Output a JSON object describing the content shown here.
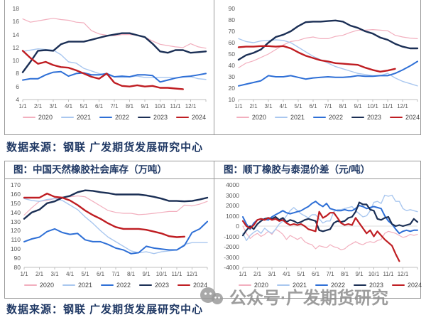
{
  "sources": {
    "top": "数据来源：钢联 广发期货发展研究中心",
    "bottom": "数据来源：钢联 广发期货发展研究中心"
  },
  "watermark": {
    "icon": "wechat-icon",
    "text": "公众号·广发期货研究"
  },
  "months": [
    "1/1",
    "2/1",
    "3/1",
    "4/1",
    "5/1",
    "6/1",
    "7/1",
    "8/1",
    "9/1",
    "10/1",
    "11/1",
    "12/1"
  ],
  "palette": {
    "y2020": "#F2AFBE",
    "y2021": "#A9C7EF",
    "y2022": "#2E6FD6",
    "y2023": "#1B2F55",
    "y2024": "#BF1D22",
    "axis": "#BFBFBF",
    "zero_line": "#DDDDDD",
    "heading": "#1F3864",
    "border": "#9A9A9A"
  },
  "chart_data": [
    {
      "id": "top-left-seasonal",
      "type": "line",
      "title": "",
      "ylim": [
        4,
        18
      ],
      "ystep": 2,
      "xmin": 1,
      "xmax": 13,
      "series": [
        {
          "name": "2020",
          "color": "#F2AFBE",
          "width": 1.2,
          "x_end": 13,
          "values": [
            16.4,
            15.9,
            16.1,
            16.3,
            16.5,
            16.3,
            16.2,
            15.9,
            15.8,
            14.6,
            14.1,
            13.9,
            13.8,
            14.0,
            14.0,
            13.9,
            13.6,
            13.0,
            12.5,
            12.3,
            12.1,
            12.0,
            12.6,
            12.1,
            11.9
          ]
        },
        {
          "name": "2021",
          "color": "#A9C7EF",
          "width": 1.4,
          "x_end": 13,
          "values": [
            11.4,
            11.6,
            11.8,
            11.7,
            11.6,
            10.9,
            9.8,
            9.6,
            8.8,
            8.4,
            8.0,
            7.8,
            7.5,
            7.4,
            7.5,
            7.6,
            7.4,
            7.4,
            7.4,
            7.4,
            7.3,
            7.5,
            7.5,
            7.2,
            7.1
          ]
        },
        {
          "name": "2022",
          "color": "#2E6FD6",
          "width": 2,
          "x_end": 13,
          "values": [
            7.0,
            7.2,
            7.2,
            7.8,
            8.2,
            8.3,
            7.6,
            8.0,
            8.1,
            7.8,
            7.8,
            8.0,
            7.5,
            7.6,
            7.5,
            7.8,
            7.8,
            7.7,
            6.7,
            7.0,
            7.3,
            7.5,
            7.6,
            7.8,
            8.0
          ]
        },
        {
          "name": "2023",
          "color": "#1B2F55",
          "width": 2.4,
          "x_end": 13,
          "values": [
            8.2,
            9.8,
            11.5,
            11.6,
            11.5,
            12.5,
            12.9,
            12.9,
            12.9,
            13.2,
            13.5,
            13.8,
            14.0,
            14.2,
            14.2,
            13.9,
            13.6,
            12.6,
            11.4,
            11.2,
            11.6,
            11.6,
            11.2,
            11.3,
            11.4
          ]
        },
        {
          "name": "2024",
          "color": "#BF1D22",
          "width": 2.4,
          "x_end": 11.5,
          "values": [
            11.5,
            10.4,
            9.5,
            9.8,
            9.3,
            9.0,
            8.9,
            8.5,
            8.0,
            7.5,
            7.2,
            8.0,
            6.6,
            6.1,
            6.0,
            6.2,
            6.0,
            6.1,
            5.8,
            5.8,
            5.7,
            5.6
          ]
        }
      ]
    },
    {
      "id": "top-right-seasonal",
      "type": "line",
      "title": "",
      "ylim": [
        10,
        90
      ],
      "ystep": 10,
      "xmin": 1,
      "xmax": 13,
      "series": [
        {
          "name": "2020",
          "color": "#F2AFBE",
          "width": 1.2,
          "x_end": 13,
          "values": [
            38,
            42,
            44,
            47,
            50,
            54,
            58,
            61,
            62,
            64,
            65,
            63.5,
            63.5,
            65.5,
            66.5,
            69,
            71,
            71,
            71.5,
            71,
            70.5,
            66.5,
            65,
            64,
            63.5
          ]
        },
        {
          "name": "2021",
          "color": "#A9C7EF",
          "width": 1.4,
          "x_end": 13,
          "values": [
            63.5,
            61,
            60,
            61.5,
            62,
            62.5,
            62,
            60,
            56,
            52,
            48,
            45,
            42,
            39,
            37,
            35,
            33,
            32,
            31,
            31,
            33,
            29,
            26,
            24,
            22
          ]
        },
        {
          "name": "2022",
          "color": "#2E6FD6",
          "width": 2,
          "x_end": 13,
          "values": [
            22,
            23.5,
            25,
            26.5,
            31,
            30,
            30,
            31,
            29.5,
            28,
            29,
            29.5,
            30,
            29.5,
            29.5,
            30,
            31,
            30.5,
            30.5,
            31,
            31,
            33,
            36,
            39.5,
            43.5
          ]
        },
        {
          "name": "2023",
          "color": "#1B2F55",
          "width": 2.4,
          "x_end": 13,
          "values": [
            45,
            49,
            51,
            54,
            60,
            65,
            67,
            70,
            74.5,
            78,
            78.5,
            78.5,
            79,
            79.5,
            78.5,
            75,
            73,
            70,
            68,
            64.5,
            62.5,
            59,
            56.5,
            55,
            55
          ]
        },
        {
          "name": "2024",
          "color": "#BF1D22",
          "width": 2.4,
          "x_end": 11.5,
          "values": [
            56,
            56.5,
            56.5,
            57,
            57,
            56.5,
            57,
            55,
            51.5,
            48.5,
            46.5,
            44.5,
            43.5,
            42,
            41.5,
            41,
            40.5,
            38,
            36,
            34.5,
            35.5,
            37
          ]
        }
      ]
    },
    {
      "id": "cn-natural-rubber-inventory",
      "type": "line",
      "title": "图：中国天然橡胶社会库存（万吨）",
      "ylim": [
        80,
        170
      ],
      "ystep": 10,
      "xmin": 1,
      "xmax": 13,
      "series": [
        {
          "name": "2020",
          "color": "#F2AFBE",
          "width": 1.2,
          "x_end": 13,
          "values": [
            137,
            145,
            152,
            153,
            155,
            156,
            157,
            158,
            157,
            152,
            147,
            142,
            140,
            139,
            139,
            137.5,
            138,
            139,
            140,
            141,
            141,
            148,
            147,
            149,
            152
          ]
        },
        {
          "name": "2021",
          "color": "#A9C7EF",
          "width": 1.4,
          "x_end": 13,
          "values": [
            155,
            153,
            152,
            154,
            155,
            153,
            148,
            143,
            135,
            128,
            120,
            113,
            108,
            103,
            98,
            96,
            97,
            95,
            97,
            98,
            99,
            105,
            107,
            107,
            107
          ]
        },
        {
          "name": "2022",
          "color": "#2E6FD6",
          "width": 2,
          "x_end": 13,
          "values": [
            108,
            111,
            113,
            119,
            122,
            118,
            116,
            117,
            110,
            108,
            108,
            105,
            101,
            99,
            95,
            96,
            103,
            101,
            100,
            99,
            99,
            104,
            118,
            122,
            130
          ]
        },
        {
          "name": "2023",
          "color": "#1B2F55",
          "width": 2.4,
          "x_end": 13,
          "values": [
            133,
            140,
            143,
            150,
            152,
            156,
            158,
            162,
            164,
            163.5,
            162,
            161,
            159.5,
            159.5,
            159.5,
            159.5,
            158.5,
            157,
            155,
            152.5,
            152.5,
            152,
            152.5,
            154,
            156
          ]
        },
        {
          "name": "2024",
          "color": "#BF1D22",
          "width": 2.4,
          "x_end": 11.5,
          "values": [
            156,
            156,
            156,
            160.5,
            157,
            156,
            153,
            148,
            142,
            137,
            133,
            128,
            124,
            122,
            122,
            122,
            121,
            119,
            117,
            114,
            113,
            113.5
          ]
        }
      ]
    },
    {
      "id": "br-vs-thai-mixed-spread",
      "type": "line",
      "title": "图：顺丁橡胶与泰混价差（元/吨）",
      "ylim": [
        -4000,
        4000
      ],
      "ystep": 1000,
      "xmin": 1,
      "xmax": 13,
      "zero_line": true,
      "series": [
        {
          "name": "2020",
          "color": "#F2AFBE",
          "width": 1.2,
          "x_end": 13,
          "values": [
            0,
            -700,
            -1200,
            -900,
            -700,
            -1000,
            -800,
            -500,
            -800,
            -300,
            -500,
            -800,
            -1300,
            -900,
            -1100,
            -1300,
            -1100,
            -1500,
            -1700,
            -1800,
            -2200,
            -1900,
            -2000,
            -2100,
            -1800,
            -2000,
            -2100,
            -2300,
            -2200,
            -1900,
            -1700,
            -1500,
            -1700,
            -1800,
            -1600,
            -1500,
            -1600,
            -1400,
            -1300,
            -700,
            -500,
            -600,
            -700,
            -900,
            -1100,
            -1000,
            -800,
            -900,
            -800
          ]
        },
        {
          "name": "2021",
          "color": "#A9C7EF",
          "width": 1.4,
          "x_end": 13,
          "values": [
            -700,
            -1400,
            -900,
            -600,
            -400,
            -700,
            -200,
            -500,
            -700,
            -300,
            200,
            500,
            1000,
            1500,
            1800,
            1500,
            1200,
            1000,
            800,
            1100,
            1100,
            700,
            300,
            500,
            500,
            1400,
            1600,
            1600,
            1700,
            1800,
            1900,
            1500,
            1200,
            900,
            1000,
            1500,
            2300,
            2400,
            2200,
            3000,
            2900,
            3000,
            2400,
            2400,
            1700,
            1500,
            1600,
            1500,
            1400
          ]
        },
        {
          "name": "2022",
          "color": "#2E6FD6",
          "width": 2,
          "x_end": 13,
          "values": [
            900,
            200,
            -300,
            300,
            600,
            700,
            650,
            600,
            900,
            1100,
            1300,
            1500,
            1300,
            1200,
            1300,
            1400,
            1500,
            1700,
            1900,
            2200,
            2400,
            2100,
            1900,
            2200,
            1700,
            1600,
            1500,
            1500,
            1600,
            1500,
            1500,
            1700,
            2000,
            1900,
            1700,
            1800,
            1900,
            1800,
            1700,
            1000,
            500,
            200,
            -300,
            -700,
            -500,
            -400,
            -500,
            -400,
            -400
          ]
        },
        {
          "name": "2023",
          "color": "#1B2F55",
          "width": 2.2,
          "x_end": 13,
          "values": [
            -900,
            -400,
            0,
            -300,
            200,
            500,
            700,
            800,
            700,
            900,
            600,
            800,
            400,
            600,
            500,
            300,
            400,
            600,
            700,
            600,
            500,
            -400,
            -500,
            -400,
            -300,
            300,
            500,
            400,
            500,
            800,
            900,
            1400,
            2300,
            2100,
            2100,
            1600,
            1500,
            700,
            600,
            800,
            900,
            200,
            0,
            100,
            0,
            100,
            200,
            700,
            400
          ]
        },
        {
          "name": "2024",
          "color": "#BF1D22",
          "width": 2.2,
          "x_end": 11.75,
          "values": [
            500,
            0,
            -200,
            100,
            600,
            700,
            600,
            800,
            600,
            700,
            500,
            600,
            300,
            100,
            200,
            100,
            200,
            0,
            -300,
            -400,
            -500,
            1400,
            800,
            1000,
            1300,
            1300,
            800,
            300,
            100,
            200,
            100,
            800,
            300,
            -200,
            -700,
            -400,
            -1000,
            -500,
            -900,
            -1300,
            -1600,
            -1900,
            -2700,
            -3400
          ]
        }
      ]
    }
  ]
}
